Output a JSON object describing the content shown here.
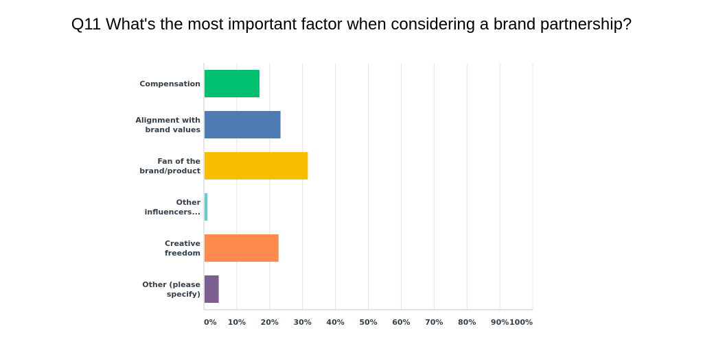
{
  "chart_data": {
    "type": "bar",
    "orientation": "horizontal",
    "title": "Q11 What's the most important factor when considering a brand partnership?",
    "categories": [
      [
        "Compensation"
      ],
      [
        "Alignment with",
        "brand values"
      ],
      [
        "Fan of the",
        "brand/product"
      ],
      [
        "Other",
        "influencers..."
      ],
      [
        "Creative",
        "freedom"
      ],
      [
        "Other (please",
        "specify)"
      ]
    ],
    "values": [
      16.9,
      23.3,
      31.6,
      1.1,
      22.7,
      4.5
    ],
    "colors": [
      "#00bf6f",
      "#507cb6",
      "#f9be00",
      "#6bc8cd",
      "#ff8b4f",
      "#7d5e90"
    ],
    "xlim": [
      0,
      100
    ],
    "xticks": [
      "0%",
      "10%",
      "20%",
      "30%",
      "40%",
      "50%",
      "60%",
      "70%",
      "80%",
      "90%",
      "100%"
    ],
    "grid": true,
    "legend": "none"
  }
}
